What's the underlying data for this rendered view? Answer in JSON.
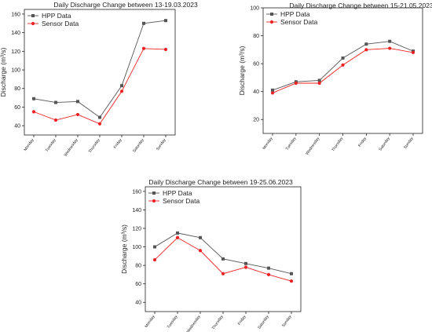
{
  "colors": {
    "hpp": "#555555",
    "sensor": "#ee2222",
    "axis": "#222222"
  },
  "chart_data": [
    {
      "type": "line",
      "title": "Daily Discharge Change between 13-19.03.2023",
      "xlabel": "",
      "ylabel": "Discharge (m³/s)",
      "categories": [
        "Monday",
        "Tuesday",
        "Wednesday",
        "Thursday",
        "Friday",
        "Saturday",
        "Sunday"
      ],
      "ylim": [
        30,
        165
      ],
      "yticks": [
        40,
        60,
        80,
        100,
        120,
        140,
        160
      ],
      "legend_position": "top-left",
      "grid": false,
      "series": [
        {
          "name": "HPP Data",
          "values": [
            69,
            65,
            66,
            49,
            83,
            150,
            153
          ]
        },
        {
          "name": "Sensor Data",
          "values": [
            55,
            46,
            52,
            42,
            77,
            123,
            122
          ]
        }
      ]
    },
    {
      "type": "line",
      "title": "Daily Discharge Change between 15-21.05.2023",
      "xlabel": "",
      "ylabel": "Discharge (m³/s)",
      "categories": [
        "Monday",
        "Tuesday",
        "Wednesday",
        "Thursday",
        "Friday",
        "Saturday",
        "Sunday"
      ],
      "ylim": [
        10,
        100
      ],
      "yticks": [
        20,
        40,
        60,
        80,
        100
      ],
      "legend_position": "top-left",
      "grid": false,
      "series": [
        {
          "name": "HPP Data",
          "values": [
            41,
            47,
            48,
            64,
            74,
            76,
            69
          ]
        },
        {
          "name": "Sensor Data",
          "values": [
            39,
            46,
            46,
            59,
            70,
            71,
            68
          ]
        }
      ]
    },
    {
      "type": "line",
      "title": "Daily Discharge Change between 19-25.06.2023",
      "xlabel": "",
      "ylabel": "Discharge (m³/s)",
      "categories": [
        "Monday",
        "Tuesday",
        "Wednesday",
        "Thursday",
        "Friday",
        "Saturday",
        "Sunday"
      ],
      "ylim": [
        30,
        165
      ],
      "yticks": [
        40,
        60,
        80,
        100,
        120,
        140,
        160
      ],
      "legend_position": "top-left",
      "grid": false,
      "series": [
        {
          "name": "HPP Data",
          "values": [
            100,
            115,
            110,
            87,
            82,
            77,
            71
          ]
        },
        {
          "name": "Sensor Data",
          "values": [
            86,
            110,
            96,
            71,
            78,
            70,
            63
          ]
        }
      ]
    }
  ]
}
